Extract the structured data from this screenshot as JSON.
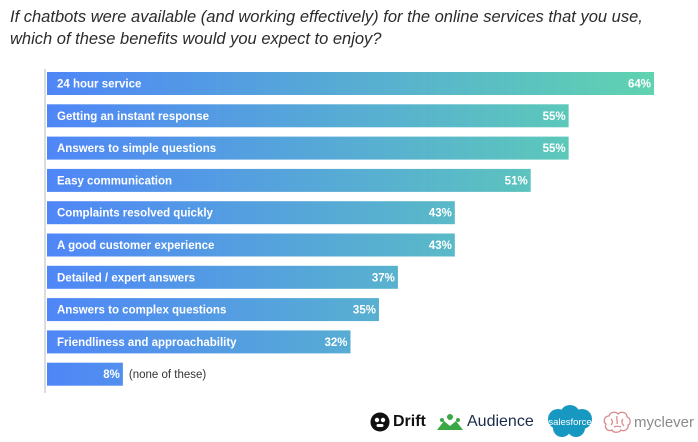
{
  "question": "If chatbots were available (and working effectively) for the online services that you use, which of these benefits would you expect to enjoy?",
  "chart_data": {
    "type": "bar",
    "orientation": "horizontal",
    "title": "If chatbots were available (and working effectively) for the online services that you use, which of these benefits would you expect to enjoy?",
    "categories": [
      "24 hour service",
      "Getting an instant response",
      "Answers to simple questions",
      "Easy communication",
      "Complaints resolved quickly",
      "A good customer experience",
      "Detailed / expert answers",
      "Answers to complex questions",
      "Friendliness and approachability",
      "(none of these)"
    ],
    "values": [
      64,
      55,
      55,
      51,
      43,
      43,
      37,
      35,
      32,
      8
    ],
    "value_labels": [
      "64%",
      "55%",
      "55%",
      "51%",
      "43%",
      "43%",
      "37%",
      "35%",
      "32%",
      "8%"
    ],
    "unit": "%",
    "xlim": [
      0,
      64
    ],
    "gradient": {
      "start": "#4f86f7",
      "end": "#5fd3b0"
    },
    "grid": false,
    "legend": "none"
  },
  "logos": {
    "drift": {
      "name": "Drift",
      "icon": "drift-icon",
      "color": "#111111"
    },
    "audience": {
      "name": "Audience",
      "icon": "audience-icon",
      "color": "#1a2b4a",
      "accent": "#3aa845"
    },
    "salesforce": {
      "name": "salesforce",
      "icon": "salesforce-cloud-icon",
      "color": "#1798c1"
    },
    "myclever": {
      "name": "myclever",
      "icon": "brain-icon",
      "color": "#d98b8b"
    }
  }
}
